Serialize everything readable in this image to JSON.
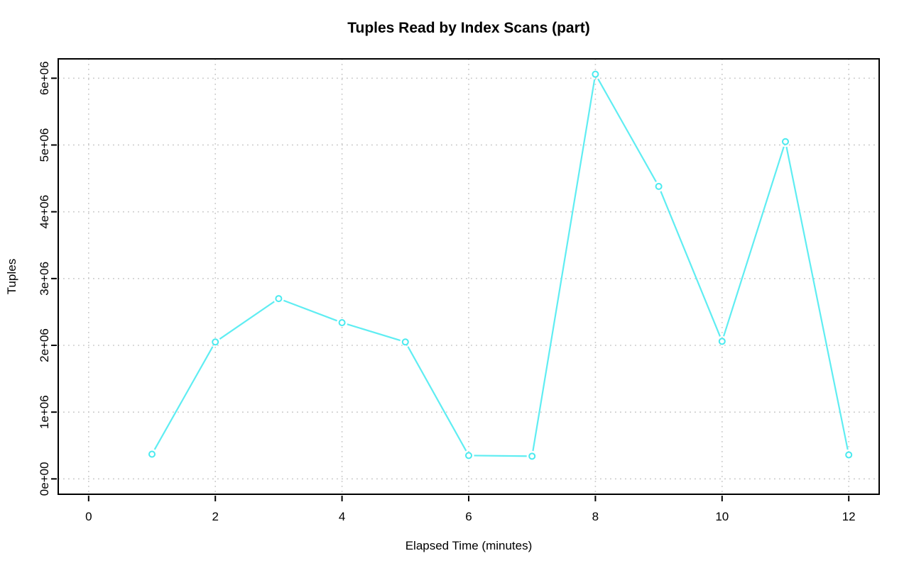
{
  "chart_data": {
    "type": "line",
    "title": "Tuples Read by Index Scans (part)",
    "xlabel": "Elapsed Time (minutes)",
    "ylabel": "Tuples",
    "x": [
      1,
      2,
      3,
      4,
      5,
      6,
      7,
      8,
      9,
      10,
      11,
      12
    ],
    "values": [
      370000,
      2050000,
      2700000,
      2340000,
      2050000,
      350000,
      340000,
      6060000,
      4380000,
      2060000,
      5050000,
      360000
    ],
    "xlim": [
      -0.48,
      12.48
    ],
    "ylim": [
      -230000,
      6290000
    ],
    "x_ticks": [
      0,
      2,
      4,
      6,
      8,
      10,
      12
    ],
    "x_tick_labels": [
      "0",
      "2",
      "4",
      "6",
      "8",
      "10",
      "12"
    ],
    "y_ticks": [
      0,
      1000000,
      2000000,
      3000000,
      4000000,
      5000000,
      6000000
    ],
    "y_tick_labels": [
      "0e+00",
      "1e+06",
      "2e+06",
      "3e+06",
      "4e+06",
      "5e+06",
      "6e+06"
    ],
    "grid": "dotted-both-axes",
    "legend": "none",
    "marker": "open-circle",
    "line_style": "points-with-gapped-segments",
    "colors": {
      "line": "#5FEDF2",
      "marker": "#4AEAEF",
      "grid": "#C9C9C9",
      "axis": "#000000",
      "text": "#000000",
      "background": "#FFFFFF"
    }
  }
}
